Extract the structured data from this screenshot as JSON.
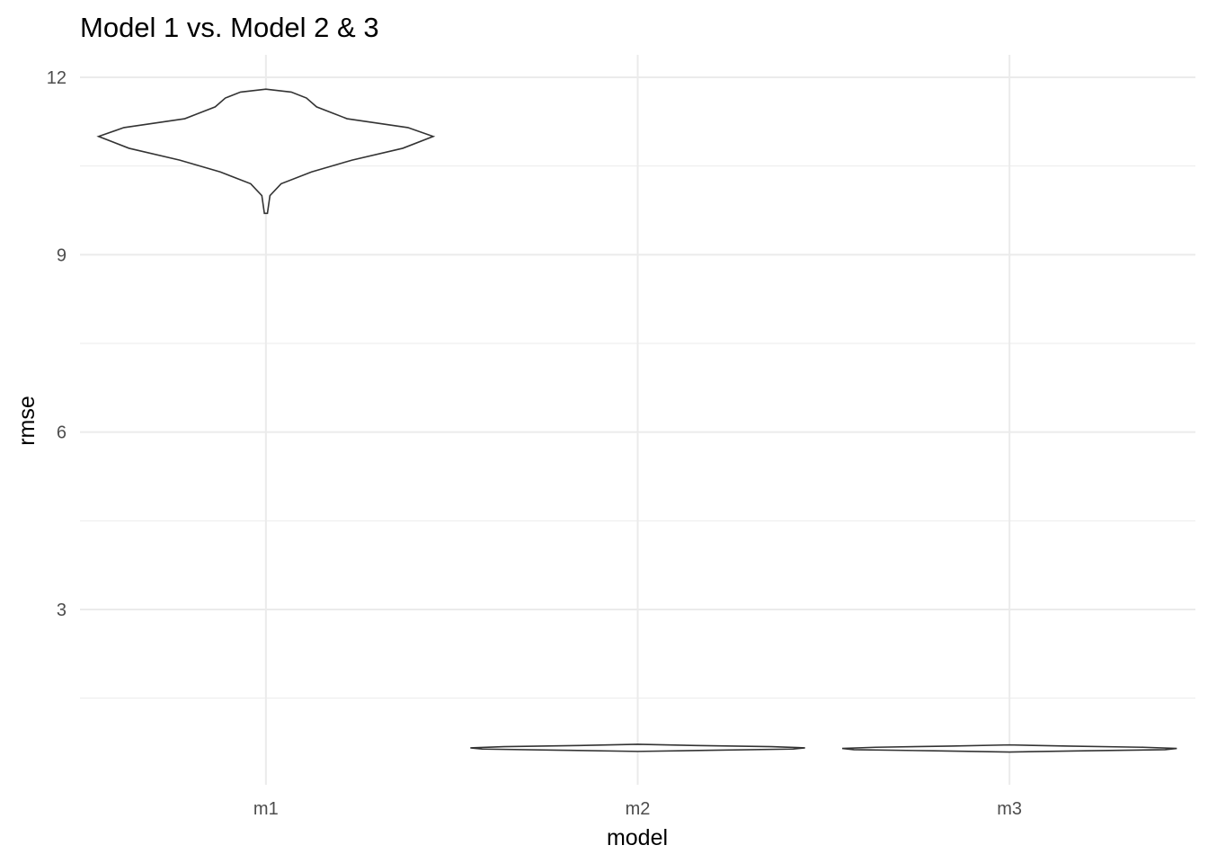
{
  "chart_data": {
    "type": "violin",
    "title": "Model 1 vs. Model 2 & 3",
    "xlabel": "model",
    "ylabel": "rmse",
    "categories": [
      "m1",
      "m2",
      "m3"
    ],
    "ylim": [
      0,
      12.2
    ],
    "yticks": [
      3,
      6,
      9,
      12
    ],
    "grid": true,
    "colors": {
      "outline": "#333333",
      "fill": "#ffffff",
      "grid": "#ebebeb",
      "tick_text": "#4d4d4d"
    },
    "violins": [
      {
        "category": "m1",
        "min": 9.7,
        "max": 11.8,
        "profile": [
          [
            9.7,
            0.003
          ],
          [
            10.0,
            0.008
          ],
          [
            10.2,
            0.03
          ],
          [
            10.4,
            0.09
          ],
          [
            10.6,
            0.17
          ],
          [
            10.8,
            0.27
          ],
          [
            11.0,
            0.33
          ],
          [
            11.15,
            0.28
          ],
          [
            11.3,
            0.16
          ],
          [
            11.5,
            0.1
          ],
          [
            11.65,
            0.08
          ],
          [
            11.75,
            0.05
          ],
          [
            11.8,
            0.0
          ]
        ]
      },
      {
        "category": "m2",
        "min": 0.6,
        "max": 0.72,
        "profile": [
          [
            0.6,
            0.0
          ],
          [
            0.62,
            0.45
          ],
          [
            0.64,
            0.93
          ],
          [
            0.66,
            1.0
          ],
          [
            0.68,
            0.8
          ],
          [
            0.7,
            0.35
          ],
          [
            0.72,
            0.0
          ]
        ]
      },
      {
        "category": "m3",
        "min": 0.59,
        "max": 0.71,
        "profile": [
          [
            0.59,
            0.0
          ],
          [
            0.61,
            0.45
          ],
          [
            0.63,
            0.93
          ],
          [
            0.65,
            1.0
          ],
          [
            0.67,
            0.8
          ],
          [
            0.69,
            0.35
          ],
          [
            0.71,
            0.0
          ]
        ]
      }
    ]
  }
}
